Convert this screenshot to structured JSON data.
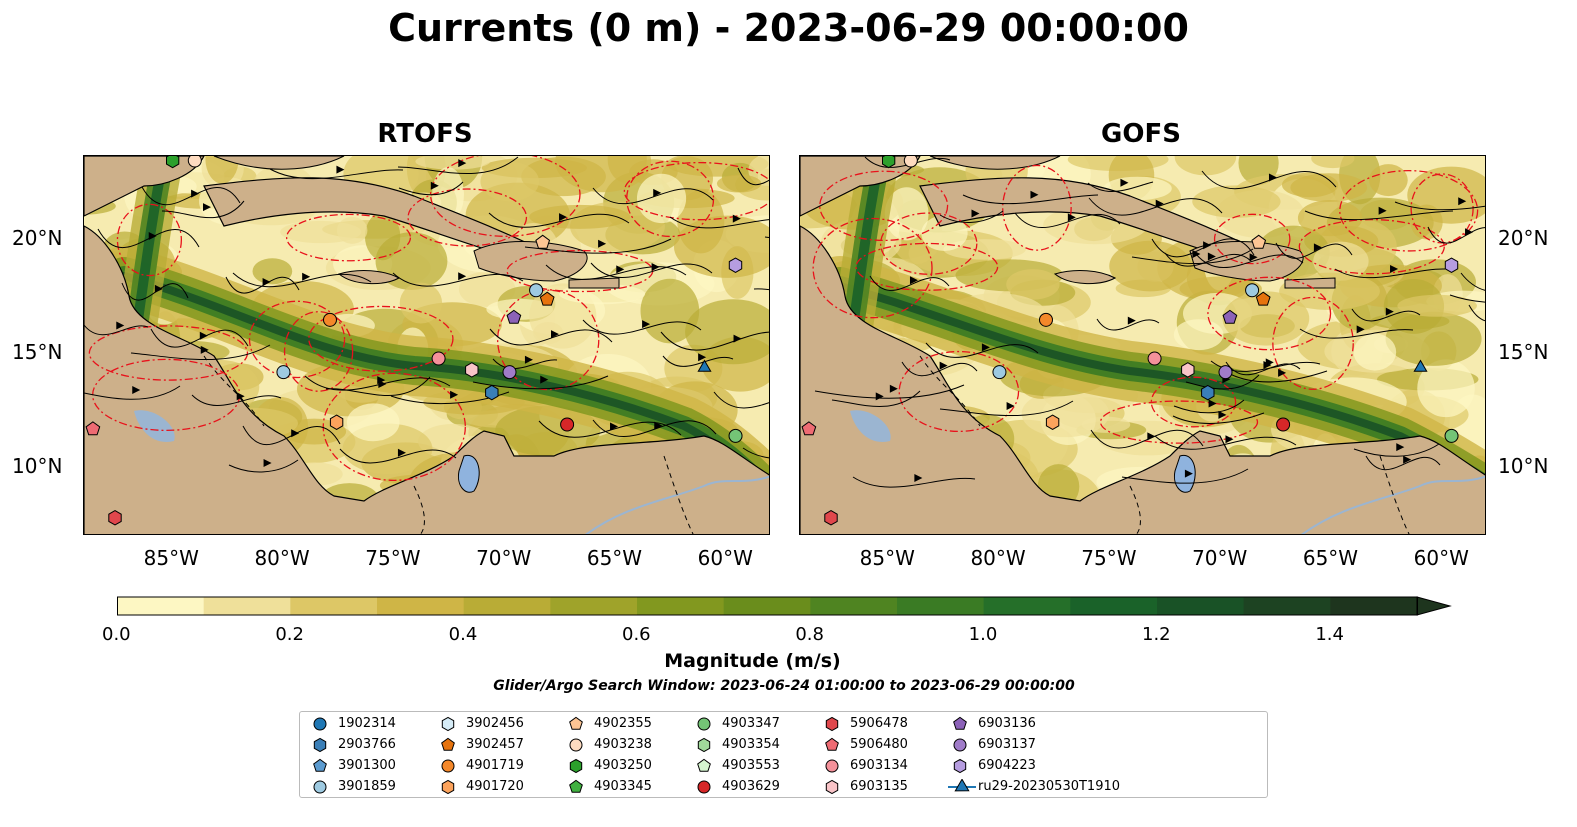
{
  "title": "Currents (0 m) - 2023-06-29 00:00:00",
  "panels": [
    {
      "title": "RTOFS",
      "lat_labels_side": "left"
    },
    {
      "title": "GOFS",
      "lat_labels_side": "right"
    }
  ],
  "axes": {
    "x_ticks": [
      "85°W",
      "80°W",
      "75°W",
      "70°W",
      "65°W",
      "60°W"
    ],
    "x_values": [
      -85,
      -80,
      -75,
      -70,
      -65,
      -60
    ],
    "y_ticks": [
      "20°N",
      "15°N",
      "10°N"
    ],
    "y_values": [
      20,
      15,
      10
    ],
    "lon_range": [
      -89,
      -58
    ],
    "lat_range": [
      7,
      23.7
    ]
  },
  "colorbar": {
    "label": "Magnitude (m/s)",
    "ticks": [
      "0.0",
      "0.2",
      "0.4",
      "0.6",
      "0.8",
      "1.0",
      "1.2",
      "1.4"
    ],
    "tick_values": [
      0.0,
      0.2,
      0.4,
      0.6,
      0.8,
      1.0,
      1.2,
      1.4
    ],
    "range": [
      0,
      1.5
    ],
    "extend": "max",
    "colors": [
      "#fdf7c3",
      "#efe09a",
      "#ddc766",
      "#cfb546",
      "#b9ac36",
      "#9fa32a",
      "#82981f",
      "#6a8d1c",
      "#4f8421",
      "#3a7b24",
      "#256f29",
      "#1a6229",
      "#195226",
      "#1d4322",
      "#1e351e"
    ]
  },
  "search_window": "Glider/Argo Search Window: 2023-06-24 01:00:00 to 2023-06-29 00:00:00",
  "legend": [
    {
      "label": "1902314",
      "marker": "circle",
      "color": "#1f77b4"
    },
    {
      "label": "2903766",
      "marker": "hexagon",
      "color": "#3a7fb8"
    },
    {
      "label": "3901300",
      "marker": "pentagon",
      "color": "#5b9bd0"
    },
    {
      "label": "3901859",
      "marker": "circle",
      "color": "#9ecae1"
    },
    {
      "label": "3902456",
      "marker": "hexagon",
      "color": "#d6ecf7"
    },
    {
      "label": "3902457",
      "marker": "pentagon",
      "color": "#e6730e"
    },
    {
      "label": "4901719",
      "marker": "circle",
      "color": "#f4882a"
    },
    {
      "label": "4901720",
      "marker": "hexagon",
      "color": "#fca35c"
    },
    {
      "label": "4902355",
      "marker": "pentagon",
      "color": "#fdc594"
    },
    {
      "label": "4903238",
      "marker": "circle",
      "color": "#fddbc0"
    },
    {
      "label": "4903250",
      "marker": "hexagon",
      "color": "#2ca02c"
    },
    {
      "label": "4903345",
      "marker": "pentagon",
      "color": "#40b040"
    },
    {
      "label": "4903347",
      "marker": "circle",
      "color": "#74c476"
    },
    {
      "label": "4903354",
      "marker": "hexagon",
      "color": "#a1d99b"
    },
    {
      "label": "4903553",
      "marker": "pentagon",
      "color": "#d6f5d0"
    },
    {
      "label": "4903629",
      "marker": "circle",
      "color": "#d62728"
    },
    {
      "label": "5906478",
      "marker": "hexagon",
      "color": "#e0474c"
    },
    {
      "label": "5906480",
      "marker": "pentagon",
      "color": "#ee6b73"
    },
    {
      "label": "6903134",
      "marker": "circle",
      "color": "#f4919a"
    },
    {
      "label": "6903135",
      "marker": "hexagon",
      "color": "#f9c4c8"
    },
    {
      "label": "6903136",
      "marker": "pentagon",
      "color": "#8c62b8"
    },
    {
      "label": "6903137",
      "marker": "circle",
      "color": "#a07cc9"
    },
    {
      "label": "6904223",
      "marker": "hexagon",
      "color": "#b69de0"
    },
    {
      "label": "ru29-20230530T1910",
      "marker": "triangle-line",
      "color": "#1f77b4"
    }
  ],
  "platforms": [
    {
      "id": "4903250",
      "lon": -85.0,
      "lat": 23.5,
      "marker": "hexagon",
      "color": "#2ca02c"
    },
    {
      "id": "4903238",
      "lon": -84.0,
      "lat": 23.5,
      "marker": "circle",
      "color": "#fddbc0"
    },
    {
      "id": "6904223",
      "lon": -59.6,
      "lat": 18.9,
      "marker": "hexagon",
      "color": "#b69de0"
    },
    {
      "id": "4902355",
      "lon": -68.3,
      "lat": 19.9,
      "marker": "pentagon",
      "color": "#fdc594"
    },
    {
      "id": "3901859",
      "lon": -68.6,
      "lat": 17.8,
      "marker": "circle",
      "color": "#9ecae1"
    },
    {
      "id": "3902457",
      "lon": -68.1,
      "lat": 17.4,
      "marker": "pentagon",
      "color": "#e6730e"
    },
    {
      "id": "4901719",
      "lon": -77.9,
      "lat": 16.5,
      "marker": "circle",
      "color": "#f4882a"
    },
    {
      "id": "6903136",
      "lon": -69.6,
      "lat": 16.6,
      "marker": "pentagon",
      "color": "#8c62b8"
    },
    {
      "id": "6903134",
      "lon": -73.0,
      "lat": 14.8,
      "marker": "circle",
      "color": "#f4919a"
    },
    {
      "id": "6903135",
      "lon": -71.5,
      "lat": 14.3,
      "marker": "hexagon",
      "color": "#f9c4c8"
    },
    {
      "id": "6903137",
      "lon": -69.8,
      "lat": 14.2,
      "marker": "circle",
      "color": "#a07cc9"
    },
    {
      "id": "3901859",
      "lon": -80.0,
      "lat": 14.2,
      "marker": "circle",
      "color": "#9ecae1"
    },
    {
      "id": "2903766",
      "lon": -70.6,
      "lat": 13.3,
      "marker": "hexagon",
      "color": "#3a7fb8"
    },
    {
      "id": "4901720",
      "lon": -77.6,
      "lat": 12.0,
      "marker": "hexagon",
      "color": "#fca35c"
    },
    {
      "id": "4903629",
      "lon": -67.2,
      "lat": 11.9,
      "marker": "circle",
      "color": "#d62728"
    },
    {
      "id": "4903347",
      "lon": -59.6,
      "lat": 11.4,
      "marker": "circle",
      "color": "#74c476"
    },
    {
      "id": "5906480",
      "lon": -88.6,
      "lat": 11.7,
      "marker": "pentagon",
      "color": "#ee6b73"
    },
    {
      "id": "5906478",
      "lon": -87.6,
      "lat": 7.8,
      "marker": "hexagon",
      "color": "#e0474c"
    },
    {
      "id": "ru29-20230530T1910",
      "lon": -61.0,
      "lat": 14.4,
      "marker": "triangle",
      "color": "#1f77b4"
    }
  ]
}
